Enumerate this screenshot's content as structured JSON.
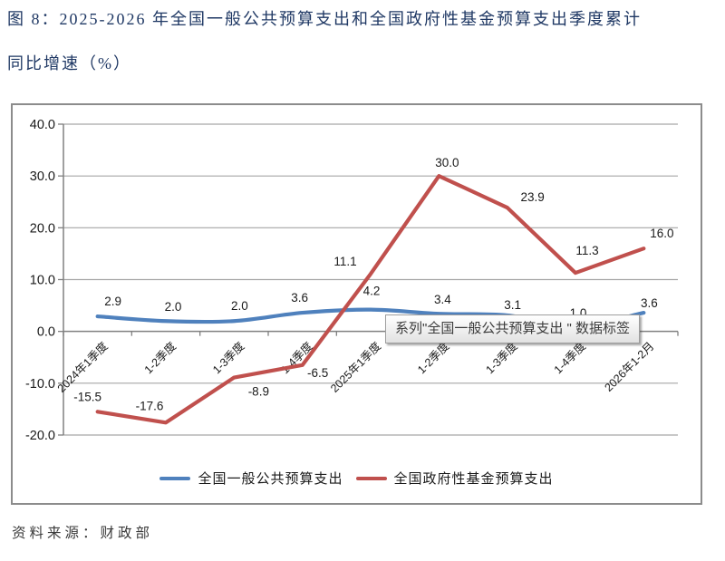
{
  "title": {
    "line1": "图 8：2025-2026 年全国一般公共预算支出和全国政府性基金预算支出季度累计",
    "line2": "同比增速（%）"
  },
  "tooltip": {
    "text": "系列\"全国一般公共预算支出 \" 数据标签"
  },
  "source": {
    "text": "资料来源：财政部"
  },
  "chart_data": {
    "type": "line",
    "categories": [
      "2024年1季度",
      "1-2季度",
      "1-3季度",
      "1-4季度",
      "2025年1季度",
      "1-2季度",
      "1-3季度",
      "1-4季度",
      "2026年1-2月"
    ],
    "series": [
      {
        "name": "全国一般公共预算支出",
        "color": "#4F81BD",
        "smooth": true,
        "values": [
          2.9,
          2.0,
          2.0,
          3.6,
          4.2,
          3.4,
          3.1,
          1.0,
          3.6
        ],
        "label_offsets": [
          [
            17,
            -17
          ],
          [
            8,
            -16
          ],
          [
            6,
            -17
          ],
          [
            -3,
            -17
          ],
          [
            1,
            -21
          ],
          [
            4,
            -16
          ],
          [
            6,
            -12
          ],
          [
            3,
            -15
          ],
          [
            6,
            -11
          ]
        ]
      },
      {
        "name": "全国政府性基金预算支出",
        "color": "#C0504D",
        "smooth": false,
        "values": [
          -15.5,
          -17.6,
          -8.9,
          -6.5,
          11.1,
          30.0,
          23.9,
          11.3,
          16.0
        ],
        "label_offsets": [
          [
            -11,
            -17
          ],
          [
            -18,
            -19
          ],
          [
            27,
            15
          ],
          [
            17,
            8
          ],
          [
            -28,
            -14
          ],
          [
            9,
            -15
          ],
          [
            28,
            -12
          ],
          [
            13,
            -25
          ],
          [
            20,
            -17
          ]
        ]
      }
    ],
    "title": "",
    "xlabel": "",
    "ylabel": "",
    "ylim": [
      -20,
      40
    ],
    "ytick_step": 10,
    "ytick_format_decimals": 1,
    "grid": true,
    "legend_position": "bottom",
    "axis_color": "#808080",
    "grid_color": "#A6A6A6",
    "tick_label_color": "#1a1a1a",
    "data_label_color": "#1a1a1a"
  }
}
